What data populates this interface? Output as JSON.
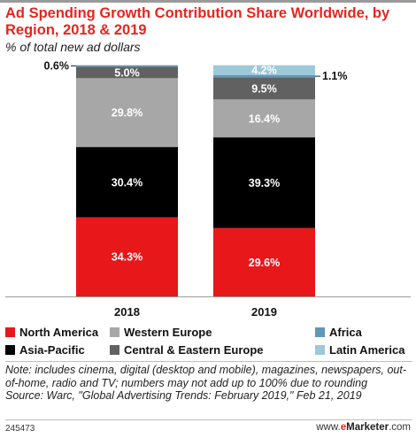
{
  "header": {
    "title": "Ad Spending Growth Contribution Share Worldwide, by Region, 2018 & 2019",
    "subtitle": "% of total new ad dollars"
  },
  "chart_data": {
    "type": "bar",
    "stacked": true,
    "categories": [
      "2018",
      "2019"
    ],
    "ylim": [
      0,
      100
    ],
    "grid": false,
    "legend_position": "bottom",
    "series": [
      {
        "name": "North America",
        "color": "#e8171a",
        "values": [
          34.3,
          29.6
        ],
        "labels": [
          "34.3%",
          "29.6%"
        ]
      },
      {
        "name": "Asia-Pacific",
        "color": "#000000",
        "values": [
          30.4,
          39.3
        ],
        "labels": [
          "30.4%",
          "39.3%"
        ]
      },
      {
        "name": "Western Europe",
        "color": "#a7a7a7",
        "values": [
          29.8,
          16.4
        ],
        "labels": [
          "29.8%",
          "16.4%"
        ]
      },
      {
        "name": "Central & Eastern Europe",
        "color": "#616161",
        "values": [
          5.0,
          9.5
        ],
        "labels": [
          "5.0%",
          "9.5%"
        ]
      },
      {
        "name": "Africa",
        "color": "#6297b7",
        "values": [
          0.6,
          1.1
        ],
        "labels": [
          "0.6%",
          "1.1%"
        ]
      },
      {
        "name": "Latin America",
        "color": "#9dc9d9",
        "values": [
          0,
          4.2
        ],
        "labels": [
          "",
          "4.2%"
        ]
      }
    ]
  },
  "legend": [
    {
      "label": "North America",
      "color": "#e8171a"
    },
    {
      "label": "Western Europe",
      "color": "#a7a7a7"
    },
    {
      "label": "Africa",
      "color": "#6297b7"
    },
    {
      "label": "Asia-Pacific",
      "color": "#000000"
    },
    {
      "label": "Central & Eastern Europe",
      "color": "#616161"
    },
    {
      "label": "Latin America",
      "color": "#9dc9d9"
    }
  ],
  "footer": {
    "note": "Note: includes cinema, digital (desktop and mobile), magazines, newspapers, out-of-home, radio and TV; numbers may not add up to 100% due to rounding",
    "source": "Source: Warc, \"Global Advertising Trends: February 2019,\" Feb 21, 2019",
    "chart_id": "245473",
    "brand_prefix": "www.",
    "brand_e": "e",
    "brand_name": "Marketer",
    "brand_suffix": ".com"
  }
}
